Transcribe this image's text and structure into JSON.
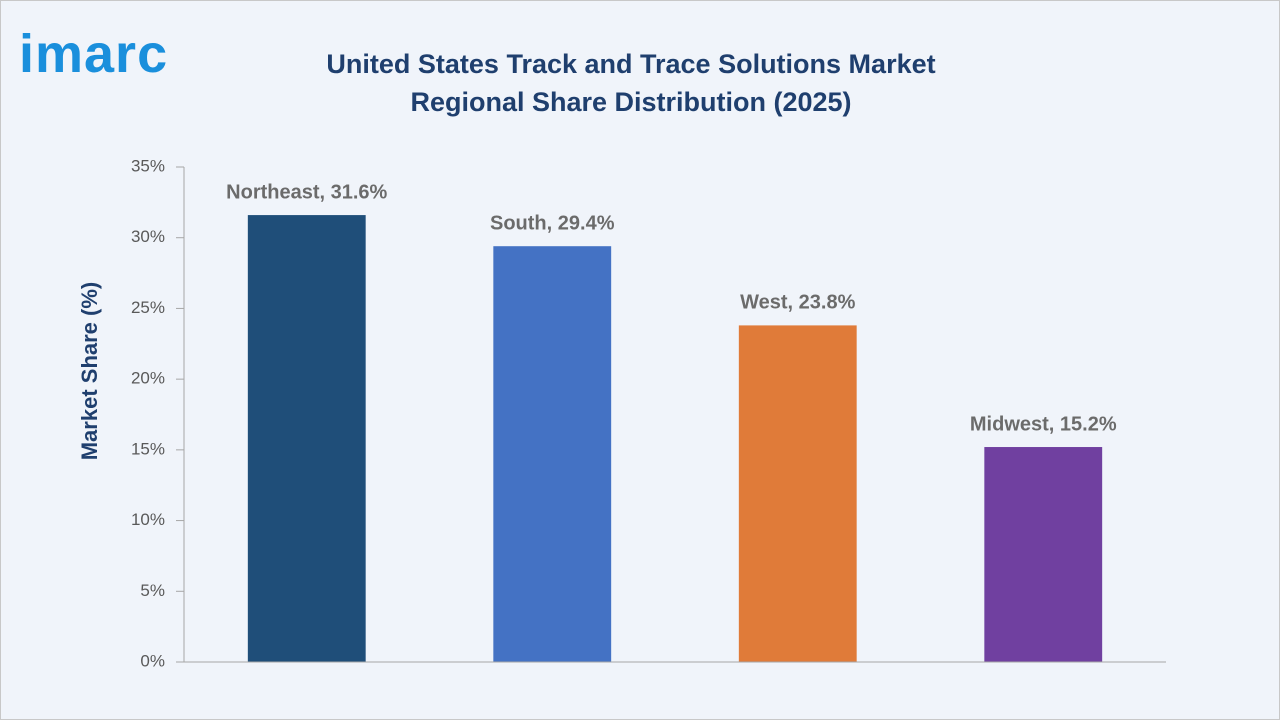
{
  "logo": "imarc",
  "chart_data": {
    "type": "bar",
    "title": "United States Track and Trace Solutions Market Regional Share Distribution (2025)",
    "y_label": "Market Share (%)",
    "categories": [
      "Northeast",
      "South",
      "West",
      "Midwest"
    ],
    "values": [
      31.6,
      29.4,
      23.8,
      15.2
    ],
    "value_labels": [
      "Northeast, 31.6%",
      "South, 29.4%",
      "West, 23.8%",
      "Midwest, 15.2%"
    ],
    "colors": [
      "#1f4e79",
      "#4472c4",
      "#e07b39",
      "#7040a0"
    ],
    "ylim": [
      0,
      35
    ],
    "yticks": [
      {
        "value": 0,
        "label": "0%"
      },
      {
        "value": 5,
        "label": "5%"
      },
      {
        "value": 10,
        "label": "10%"
      },
      {
        "value": 15,
        "label": "15%"
      },
      {
        "value": 20,
        "label": "20%"
      },
      {
        "value": 25,
        "label": "25%"
      },
      {
        "value": 30,
        "label": "30%"
      },
      {
        "value": 35,
        "label": "35%"
      }
    ],
    "grid": false
  }
}
